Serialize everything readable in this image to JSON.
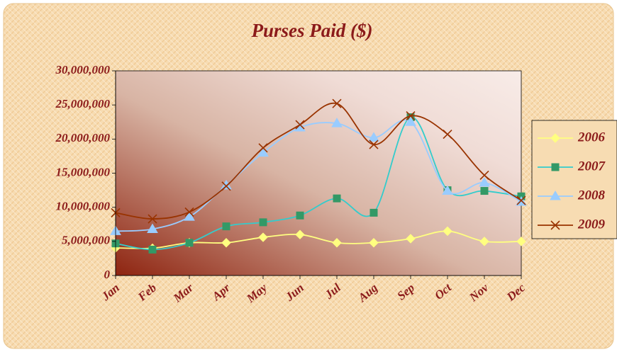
{
  "chart_data": {
    "type": "line",
    "title": "Purses Paid ($)",
    "categories": [
      "Jan",
      "Feb",
      "Mar",
      "Apr",
      "May",
      "Jun",
      "Jul",
      "Aug",
      "Sep",
      "Oct",
      "Nov",
      "Dec"
    ],
    "series": [
      {
        "name": "2006",
        "color": "#ffff80",
        "marker": "diamond",
        "values": [
          4050000,
          4000000,
          4800000,
          4800000,
          5600000,
          6000000,
          4800000,
          4800000,
          5400000,
          6500000,
          5000000,
          5000000
        ]
      },
      {
        "name": "2007",
        "color": "#33cccc",
        "marker_color": "#339966",
        "marker": "square",
        "values": [
          4700000,
          3800000,
          4800000,
          7200000,
          7800000,
          8800000,
          11300000,
          9200000,
          23200000,
          12500000,
          12400000,
          11600000
        ]
      },
      {
        "name": "2008",
        "color": "#99ccff",
        "marker": "triangle",
        "values": [
          6500000,
          6800000,
          8600000,
          13200000,
          18000000,
          21700000,
          22300000,
          20200000,
          22500000,
          12400000,
          13600000,
          10800000
        ]
      },
      {
        "name": "2009",
        "color": "#993300",
        "marker": "x",
        "values": [
          9200000,
          8300000,
          9300000,
          13100000,
          18700000,
          22100000,
          25200000,
          19200000,
          23400000,
          20700000,
          14700000,
          11000000
        ]
      }
    ],
    "ylim": [
      0,
      30000000
    ],
    "yticks": [
      0,
      {
        "value": 5000000,
        "label": "5,000,000"
      },
      {
        "value": 10000000,
        "label": "10,000,000"
      },
      {
        "value": 15000000,
        "label": "15,000,000"
      },
      {
        "value": 20000000,
        "label": "20,000,000"
      },
      {
        "value": 25000000,
        "label": "25,000,000"
      },
      {
        "value": 30000000,
        "label": "30,000,000"
      }
    ],
    "legend": "right",
    "smooth": true
  }
}
